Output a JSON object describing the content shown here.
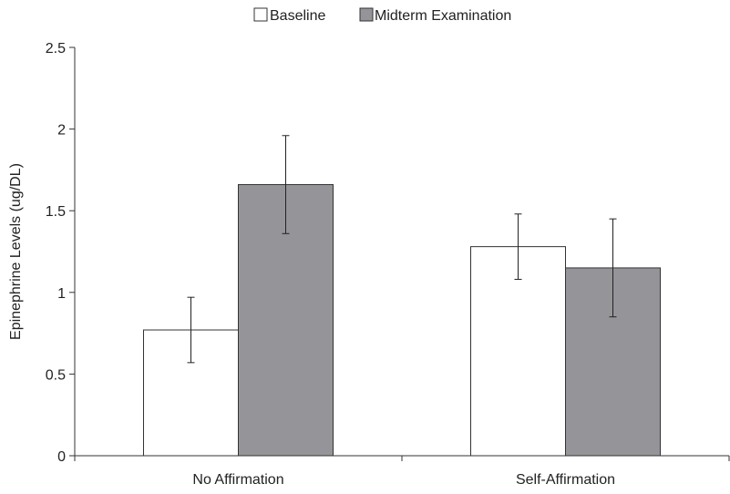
{
  "chart_data": {
    "type": "bar",
    "categories": [
      "No Affirmation",
      "Self-Affirmation"
    ],
    "series": [
      {
        "name": "Baseline",
        "values": [
          0.77,
          1.28
        ],
        "error": [
          0.2,
          0.2
        ],
        "color": "#ffffff"
      },
      {
        "name": "Midterm Examination",
        "values": [
          1.66,
          1.15
        ],
        "error": [
          0.3,
          0.3
        ],
        "color": "#959599"
      }
    ],
    "xlabel": "",
    "ylabel": "Epinephrine Levels (ug/DL)",
    "ylim": [
      0,
      2.5
    ],
    "yticks": [
      "0",
      "0.5",
      "1",
      "1.5",
      "2",
      "2.5"
    ],
    "ytick_values": [
      0,
      0.5,
      1,
      1.5,
      2,
      2.5
    ],
    "legend_position": "top-center",
    "grid": false
  }
}
